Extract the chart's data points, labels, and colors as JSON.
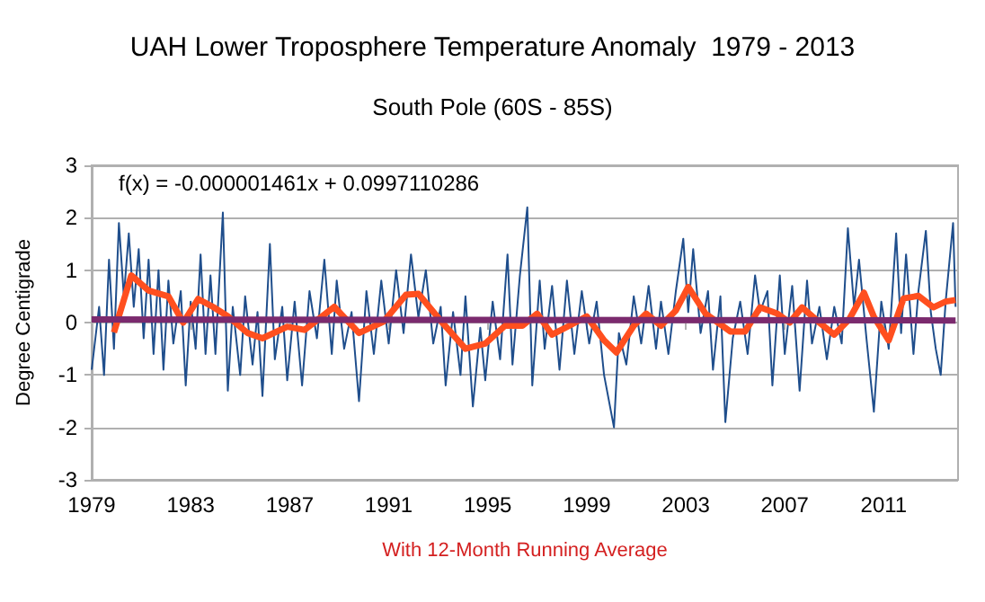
{
  "chart_data": {
    "type": "line",
    "title": "UAH Lower Troposphere Temperature Anomaly  1979 - 2013",
    "subtitle": "South Pole (60S - 85S)",
    "ylabel": "Degree Centigrade",
    "xlabel": "With 12-Month Running Average",
    "annotations": [
      "f(x) = -0.000001461x + 0.0997110286"
    ],
    "xlim": [
      1979,
      2014
    ],
    "xticks": [
      1979,
      1983,
      1987,
      1991,
      1995,
      1999,
      2003,
      2007,
      2011
    ],
    "ylim": [
      -3,
      3
    ],
    "yticks": [
      -3,
      -2,
      -1,
      0,
      1,
      2,
      3
    ],
    "grid": "y",
    "marker": "none",
    "line_style": "solid",
    "series": [
      {
        "color": "#1f4e8c",
        "x": [
          1979.0,
          1979.3,
          1979.5,
          1979.7,
          1979.9,
          1980.1,
          1980.3,
          1980.5,
          1980.7,
          1980.9,
          1981.1,
          1981.3,
          1981.5,
          1981.7,
          1981.9,
          1982.1,
          1982.3,
          1982.6,
          1982.8,
          1983.0,
          1983.2,
          1983.4,
          1983.6,
          1983.8,
          1984.0,
          1984.3,
          1984.5,
          1984.7,
          1985.0,
          1985.2,
          1985.5,
          1985.7,
          1985.9,
          1986.2,
          1986.4,
          1986.7,
          1986.9,
          1987.2,
          1987.5,
          1987.8,
          1988.1,
          1988.4,
          1988.7,
          1988.9,
          1989.2,
          1989.5,
          1989.8,
          1990.1,
          1990.4,
          1990.7,
          1991.0,
          1991.3,
          1991.6,
          1991.9,
          1992.2,
          1992.5,
          1992.8,
          1993.1,
          1993.3,
          1993.6,
          1993.9,
          1994.1,
          1994.4,
          1994.7,
          1994.9,
          1995.2,
          1995.5,
          1995.8,
          1996.0,
          1996.3,
          1996.6,
          1996.8,
          1997.1,
          1997.3,
          1997.6,
          1997.9,
          1998.2,
          1998.5,
          1998.8,
          1999.1,
          1999.4,
          1999.7,
          2000.1,
          2000.3,
          2000.6,
          2000.9,
          2001.2,
          2001.5,
          2001.8,
          2002.0,
          2002.3,
          2002.6,
          2002.9,
          2003.1,
          2003.3,
          2003.6,
          2003.9,
          2004.1,
          2004.4,
          2004.6,
          2004.9,
          2005.2,
          2005.5,
          2005.8,
          2006.0,
          2006.3,
          2006.5,
          2006.8,
          2007.0,
          2007.3,
          2007.6,
          2007.9,
          2008.1,
          2008.4,
          2008.7,
          2009.0,
          2009.3,
          2009.55,
          2009.8,
          2010.0,
          2010.3,
          2010.6,
          2010.9,
          2011.2,
          2011.5,
          2011.7,
          2011.9,
          2012.2,
          2012.4,
          2012.7,
          2012.9,
          2013.1,
          2013.3,
          2013.5,
          2013.8,
          2013.9
        ],
        "values": [
          -0.9,
          0.3,
          -1.0,
          1.2,
          -0.5,
          1.9,
          0.5,
          1.7,
          0.3,
          1.4,
          -0.3,
          1.2,
          -0.6,
          1.0,
          -0.9,
          0.8,
          -0.4,
          0.6,
          -1.2,
          0.4,
          -0.5,
          1.3,
          -0.6,
          0.9,
          -0.6,
          2.1,
          -1.3,
          0.3,
          -1.0,
          0.5,
          -0.8,
          0.2,
          -1.4,
          1.5,
          -0.7,
          0.3,
          -1.1,
          0.4,
          -1.2,
          0.6,
          -0.3,
          1.2,
          -0.6,
          0.8,
          -0.5,
          0.2,
          -1.5,
          0.6,
          -0.6,
          0.8,
          -0.4,
          1.0,
          -0.2,
          1.3,
          0.1,
          1.0,
          -0.4,
          0.3,
          -1.2,
          0.2,
          -1.0,
          0.5,
          -1.6,
          -0.1,
          -1.1,
          0.4,
          -0.7,
          1.3,
          -0.8,
          0.9,
          2.2,
          -1.2,
          0.8,
          -0.5,
          0.7,
          -0.9,
          0.8,
          -0.6,
          0.6,
          -0.4,
          0.4,
          -1.0,
          -2.0,
          -0.2,
          -0.8,
          0.5,
          -0.4,
          0.7,
          -0.5,
          0.4,
          -0.6,
          0.6,
          1.6,
          0.2,
          1.4,
          -0.2,
          0.6,
          -0.9,
          0.5,
          -1.9,
          -0.3,
          0.4,
          -0.6,
          0.9,
          0.2,
          0.6,
          -1.2,
          0.9,
          -0.6,
          0.7,
          -1.3,
          0.8,
          -0.4,
          0.3,
          -0.7,
          0.3,
          -0.4,
          1.8,
          0.3,
          1.2,
          -0.3,
          -1.7,
          0.4,
          -0.5,
          1.7,
          -0.2,
          1.3,
          -0.6,
          0.6,
          1.75,
          0.2,
          -0.5,
          -1.0,
          0.4,
          1.9,
          0.3
        ]
      },
      {
        "color": "#ff4f1f",
        "x": [
          1979.9,
          1980.6,
          1981.3,
          1982.1,
          1982.7,
          1983.3,
          1983.9,
          1984.5,
          1985.3,
          1985.9,
          1986.9,
          1987.6,
          1988.8,
          1989.8,
          1990.8,
          1991.7,
          1992.2,
          1993.2,
          1994.1,
          1994.9,
          1995.7,
          1996.4,
          1997.0,
          1997.6,
          1998.3,
          1999.0,
          1999.7,
          2000.2,
          2000.9,
          2001.4,
          2002.0,
          2002.6,
          2003.1,
          2003.8,
          2004.8,
          2005.4,
          2006.0,
          2006.7,
          2007.2,
          2007.7,
          2008.4,
          2009.0,
          2009.6,
          2010.2,
          2010.6,
          2011.2,
          2011.8,
          2012.4,
          2013.0,
          2013.5,
          2013.9
        ],
        "values": [
          -0.19,
          0.9,
          0.61,
          0.5,
          0.0,
          0.45,
          0.3,
          0.12,
          -0.2,
          -0.3,
          -0.08,
          -0.14,
          0.3,
          -0.2,
          0.02,
          0.53,
          0.55,
          -0.02,
          -0.5,
          -0.4,
          -0.06,
          -0.06,
          0.17,
          -0.23,
          -0.06,
          0.12,
          -0.34,
          -0.57,
          -0.06,
          0.17,
          -0.06,
          0.23,
          0.68,
          0.17,
          -0.17,
          -0.17,
          0.29,
          0.17,
          0.0,
          0.29,
          0.0,
          -0.23,
          0.06,
          0.57,
          0.11,
          -0.34,
          0.46,
          0.51,
          0.29,
          0.4,
          0.43
        ]
      },
      {
        "color": "#7b2a6e",
        "x": [
          1979,
          2013.9
        ],
        "values": [
          0.06,
          0.04
        ]
      }
    ]
  }
}
